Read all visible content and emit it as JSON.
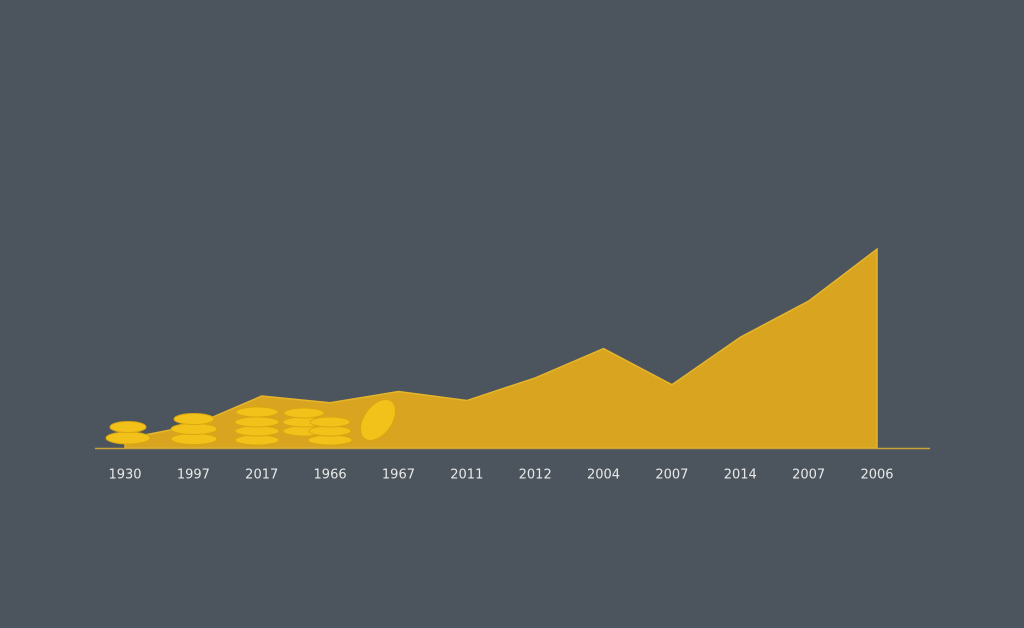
{
  "chart_data": {
    "type": "area",
    "categories": [
      "1930",
      "1997",
      "2017",
      "1966",
      "1967",
      "2011",
      "2012",
      "2004",
      "2007",
      "2014",
      "2007",
      "2006"
    ],
    "values": [
      4,
      10,
      23,
      20,
      25,
      21,
      31,
      44,
      28,
      49,
      65,
      88
    ],
    "color": "#d9a521",
    "ylim": [
      0,
      100
    ]
  }
}
